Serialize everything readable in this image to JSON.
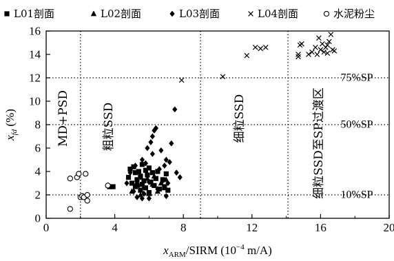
{
  "chart_data": {
    "type": "scatter",
    "xlabel": {
      "main": "x",
      "sub": "ARM",
      "rest": "/SIRM (10",
      "exp": "−4",
      "unit": " m/A)"
    },
    "ylabel": {
      "main": "x",
      "sub": "fd",
      "rest": " (%)"
    },
    "xlim": [
      0,
      20
    ],
    "ylim": [
      0,
      16
    ],
    "x_ticks": [
      "0",
      "4",
      "8",
      "12",
      "16",
      "20"
    ],
    "y_ticks": [
      "0",
      "2",
      "4",
      "6",
      "8",
      "10",
      "12",
      "14",
      "16"
    ],
    "grid": false,
    "legend_position": "top",
    "region_lines_x": [
      2,
      9,
      14.1
    ],
    "percent_lines_y": [
      2,
      8,
      12
    ],
    "region_labels": [
      "MD+PSD",
      "粗粒SSD",
      "细粒SSD",
      "细粒SSD至SP过渡区"
    ],
    "percent_labels": [
      "75%SP",
      "50%SP",
      "10%SP"
    ],
    "series": [
      {
        "name": "L01剖面",
        "marker": "square",
        "points": [
          [
            3.7,
            2.7
          ],
          [
            3.9,
            2.7
          ],
          [
            4.8,
            3.5
          ],
          [
            4.9,
            4.2
          ],
          [
            5.0,
            3.0
          ],
          [
            5.1,
            4.4
          ],
          [
            5.2,
            2.7
          ],
          [
            5.2,
            3.9
          ],
          [
            5.3,
            3.3
          ],
          [
            5.4,
            4.0
          ],
          [
            5.5,
            2.4
          ],
          [
            5.5,
            3.6
          ],
          [
            5.6,
            4.6
          ],
          [
            5.6,
            2.9
          ],
          [
            5.7,
            3.2
          ],
          [
            5.8,
            4.1
          ],
          [
            5.8,
            2.6
          ],
          [
            5.9,
            3.7
          ],
          [
            6.0,
            2.2
          ],
          [
            6.0,
            4.3
          ],
          [
            6.1,
            3.1
          ],
          [
            6.2,
            3.9
          ],
          [
            6.3,
            2.8
          ],
          [
            6.4,
            3.4
          ],
          [
            6.5,
            4.0
          ],
          [
            6.6,
            2.5
          ],
          [
            6.8,
            3.3
          ],
          [
            6.9,
            2.7
          ],
          [
            7.0,
            3.8
          ],
          [
            7.1,
            2.4
          ]
        ]
      },
      {
        "name": "L02剖面",
        "marker": "triangle",
        "points": [
          [
            5.0,
            2.3
          ],
          [
            5.3,
            3.1
          ],
          [
            5.5,
            2.0
          ],
          [
            5.7,
            2.7
          ],
          [
            5.9,
            3.4
          ],
          [
            6.0,
            2.1
          ],
          [
            6.2,
            2.9
          ],
          [
            6.3,
            3.6
          ],
          [
            6.5,
            2.3
          ],
          [
            6.7,
            3.0
          ],
          [
            6.9,
            2.6
          ],
          [
            7.0,
            3.3
          ]
        ]
      },
      {
        "name": "L03剖面",
        "marker": "diamond",
        "points": [
          [
            4.7,
            3.0
          ],
          [
            4.9,
            3.9
          ],
          [
            5.1,
            2.3
          ],
          [
            5.2,
            4.5
          ],
          [
            5.3,
            1.8
          ],
          [
            5.4,
            2.8
          ],
          [
            5.5,
            3.5
          ],
          [
            5.6,
            5.0
          ],
          [
            5.7,
            2.1
          ],
          [
            5.8,
            4.7
          ],
          [
            5.9,
            6.0
          ],
          [
            6.0,
            3.1
          ],
          [
            6.1,
            6.5
          ],
          [
            6.2,
            7.0
          ],
          [
            6.3,
            7.5
          ],
          [
            6.4,
            7.7
          ],
          [
            6.2,
            5.5
          ],
          [
            6.5,
            2.5
          ],
          [
            6.6,
            4.2
          ],
          [
            6.7,
            5.8
          ],
          [
            6.8,
            3.2
          ],
          [
            6.9,
            4.5
          ],
          [
            7.0,
            5.0
          ],
          [
            7.1,
            3.0
          ],
          [
            7.2,
            4.8
          ],
          [
            7.3,
            6.4
          ],
          [
            7.0,
            1.9
          ],
          [
            7.5,
            9.3
          ],
          [
            7.6,
            3.9
          ],
          [
            7.8,
            3.5
          ],
          [
            6.0,
            1.7
          ],
          [
            5.6,
            1.7
          ]
        ]
      },
      {
        "name": "L04剖面",
        "marker": "cross",
        "points": [
          [
            7.9,
            11.8
          ],
          [
            10.3,
            12.1
          ],
          [
            11.7,
            13.9
          ],
          [
            12.2,
            14.6
          ],
          [
            12.5,
            14.5
          ],
          [
            12.8,
            14.6
          ],
          [
            14.7,
            14.0
          ],
          [
            14.7,
            13.8
          ],
          [
            14.8,
            14.8
          ],
          [
            14.9,
            14.9
          ],
          [
            15.3,
            14.0
          ],
          [
            15.5,
            14.2
          ],
          [
            15.7,
            14.6
          ],
          [
            15.8,
            14.0
          ],
          [
            15.9,
            15.4
          ],
          [
            16.0,
            14.4
          ],
          [
            16.1,
            14.9
          ],
          [
            16.2,
            14.2
          ],
          [
            16.3,
            14.6
          ],
          [
            16.4,
            14.1
          ],
          [
            16.5,
            15.1
          ],
          [
            16.6,
            15.7
          ],
          [
            16.7,
            14.4
          ],
          [
            16.8,
            14.3
          ],
          [
            16.4,
            14.8
          ]
        ]
      },
      {
        "name": "水泥粉尘",
        "marker": "circle",
        "points": [
          [
            1.4,
            0.8
          ],
          [
            1.4,
            3.4
          ],
          [
            1.8,
            3.5
          ],
          [
            1.9,
            3.8
          ],
          [
            2.0,
            1.8
          ],
          [
            2.1,
            1.9
          ],
          [
            2.2,
            1.8
          ],
          [
            2.3,
            3.8
          ],
          [
            2.4,
            1.5
          ],
          [
            2.4,
            2.0
          ],
          [
            3.6,
            2.8
          ]
        ]
      }
    ]
  }
}
